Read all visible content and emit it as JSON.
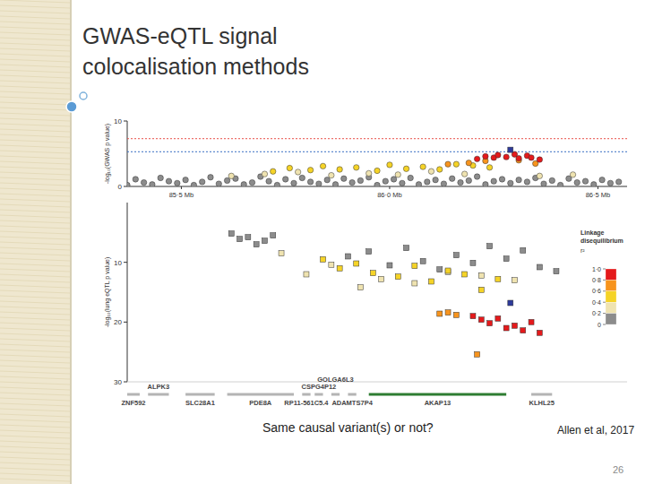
{
  "slide": {
    "title": "GWAS-eQTL signal colocalisation methods",
    "caption": "Same causal variant(s) or not?",
    "citation": "Allen et al, 2017",
    "page": 26
  },
  "chart_data": [
    {
      "type": "scatter",
      "marker": "circle",
      "ylabel": "-log₁₀(GWAS p value)",
      "xlim": [
        85.37,
        86.57
      ],
      "xticks": [
        {
          "value": 85.5,
          "label": "85·5 Mb"
        },
        {
          "value": 86.0,
          "label": "86·0 Mb"
        },
        {
          "value": 86.5,
          "label": "86·5 Mb"
        }
      ],
      "ylim": [
        0,
        10
      ],
      "yticks": [
        0,
        10
      ],
      "reference_lines": [
        {
          "value": 7.3,
          "color": "#e8504a"
        },
        {
          "value": 5.3,
          "color": "#3a6fc4"
        }
      ],
      "series": [
        {
          "color": "#8c8c8c",
          "x": [
            85.37,
            85.39,
            85.41,
            85.43,
            85.45,
            85.47,
            85.49,
            85.51,
            85.53,
            85.55,
            85.57,
            85.59,
            85.61,
            85.63,
            85.65,
            85.67,
            85.69,
            85.71,
            85.73,
            85.75,
            85.77,
            85.79,
            85.81,
            85.83,
            85.85,
            85.87,
            85.89,
            85.91,
            85.93,
            85.95,
            85.97,
            85.99,
            86.01,
            86.03,
            86.05,
            86.07,
            86.09,
            86.11,
            86.13,
            86.15,
            86.17,
            86.19,
            86.21,
            86.23,
            86.25,
            86.27,
            86.29,
            86.31,
            86.33,
            86.35,
            86.37,
            86.39,
            86.41,
            86.43,
            86.45,
            86.47,
            86.49,
            86.51,
            86.53,
            86.55
          ],
          "values": [
            0.2,
            1.1,
            0.6,
            0.3,
            1.3,
            0.8,
            0.5,
            1.0,
            0.2,
            0.7,
            1.4,
            0.4,
            0.9,
            1.2,
            0.3,
            0.6,
            1.5,
            0.8,
            0.2,
            1.1,
            0.5,
            1.3,
            0.7,
            0.4,
            1.0,
            0.3,
            1.2,
            0.6,
            0.9,
            1.4,
            0.2,
            0.8,
            1.1,
            0.5,
            1.3,
            0.3,
            0.7,
            1.0,
            0.4,
            1.2,
            0.6,
            0.9,
            1.5,
            0.3,
            0.8,
            1.1,
            0.5,
            1.0,
            0.7,
            1.3,
            0.4,
            0.9,
            0.2,
            1.2,
            0.6,
            0.8,
            0.3,
            1.0,
            0.5,
            0.7
          ]
        },
        {
          "color": "#efe3b0",
          "x": [
            85.62,
            85.7,
            85.78,
            85.86,
            85.95,
            86.02,
            86.1,
            86.18,
            86.36,
            86.44
          ],
          "values": [
            1.6,
            1.9,
            2.2,
            1.7,
            2.0,
            1.8,
            2.3,
            1.9,
            1.6,
            1.8
          ]
        },
        {
          "color": "#f5d327",
          "x": [
            85.72,
            85.76,
            85.81,
            85.84,
            85.88,
            85.92,
            85.97,
            86.0,
            86.04,
            86.08,
            86.12,
            86.16,
            86.2,
            86.24
          ],
          "values": [
            2.3,
            2.8,
            2.5,
            3.1,
            2.6,
            2.9,
            2.4,
            3.3,
            2.7,
            3.0,
            2.6,
            3.4,
            3.2,
            2.9
          ]
        },
        {
          "color": "#f7941d",
          "x": [
            86.14,
            86.19,
            86.23,
            86.31,
            86.35
          ],
          "values": [
            3.4,
            3.6,
            3.9,
            4.0,
            3.5
          ]
        },
        {
          "color": "#e41a1c",
          "x": [
            86.21,
            86.23,
            86.25,
            86.26,
            86.28,
            86.3,
            86.31,
            86.33,
            86.34,
            86.36
          ],
          "values": [
            4.2,
            4.6,
            4.4,
            4.8,
            4.5,
            4.9,
            4.3,
            4.7,
            4.4,
            4.1
          ]
        },
        {
          "color": "#2e3a9a",
          "marker": "square",
          "x": [
            86.29
          ],
          "values": [
            5.6
          ]
        }
      ]
    },
    {
      "type": "scatter",
      "marker": "square",
      "ylabel": "-log₁₀(lung eQTL p value)",
      "xlim": [
        85.37,
        86.57
      ],
      "ylim": [
        30,
        0
      ],
      "yticks": [
        10,
        20,
        30
      ],
      "tick_labels": "y",
      "series": [
        {
          "color": "#8c8c8c",
          "x": [
            85.62,
            85.64,
            85.66,
            85.68,
            85.7,
            85.72,
            85.9,
            85.95,
            86.0,
            86.04,
            86.08,
            86.12,
            86.16,
            86.2,
            86.24,
            86.28,
            86.32,
            86.36,
            86.4
          ],
          "values": [
            5.2,
            6.1,
            5.8,
            7.0,
            6.4,
            5.5,
            9.0,
            8.2,
            10.5,
            7.6,
            9.8,
            11.2,
            8.8,
            10.1,
            7.3,
            9.4,
            8.0,
            10.8,
            11.5
          ]
        },
        {
          "color": "#efe3b0",
          "x": [
            85.74,
            85.8,
            85.86,
            85.93,
            85.98,
            86.06,
            86.14,
            86.22,
            86.3
          ],
          "values": [
            8.5,
            12.0,
            10.4,
            14.2,
            12.8,
            13.5,
            11.6,
            12.2,
            13.0
          ]
        },
        {
          "color": "#f5d327",
          "x": [
            85.84,
            85.88,
            85.92,
            85.96,
            86.02,
            86.06,
            86.1,
            86.14,
            86.18,
            86.22,
            86.26
          ],
          "values": [
            9.5,
            11.0,
            10.2,
            11.8,
            12.4,
            10.6,
            13.2,
            11.4,
            12.0,
            14.6,
            12.8
          ]
        },
        {
          "color": "#f7941d",
          "x": [
            86.12,
            86.14,
            86.16,
            86.21
          ],
          "values": [
            18.6,
            18.4,
            18.8,
            25.4
          ]
        },
        {
          "color": "#e41a1c",
          "x": [
            86.2,
            86.22,
            86.24,
            86.26,
            86.28,
            86.3,
            86.32,
            86.34,
            86.36
          ],
          "values": [
            19.0,
            19.6,
            20.2,
            19.4,
            21.0,
            20.6,
            21.4,
            20.0,
            21.8
          ]
        },
        {
          "color": "#2e3a9a",
          "x": [
            86.29
          ],
          "values": [
            16.8
          ]
        }
      ]
    }
  ],
  "ld_legend": {
    "title": "Linkage disequilibrium",
    "subtitle": "r²",
    "ticks": [
      {
        "value": 1,
        "label": "1·0"
      },
      {
        "value": 0.8,
        "label": "0·8"
      },
      {
        "value": 0.6,
        "label": "0·6"
      },
      {
        "value": 0.4,
        "label": "0·4"
      },
      {
        "value": 0.2,
        "label": "0·2"
      },
      0
    ],
    "colors": [
      "#e41a1c",
      "#f7941d",
      "#f5d327",
      "#efe3b0",
      "#8c8c8c"
    ]
  },
  "genes": [
    {
      "name": "ZNF592",
      "start": 85.37,
      "end": 85.4,
      "color": "#b4b4b4"
    },
    {
      "name": "ALPK3",
      "start": 85.42,
      "end": 85.47,
      "color": "#b4b4b4"
    },
    {
      "name": "SLC28A1",
      "start": 85.51,
      "end": 85.58,
      "color": "#b4b4b4"
    },
    {
      "name": "PDE8A",
      "start": 85.61,
      "end": 85.77,
      "color": "#b4b4b4"
    },
    {
      "name": "RP11-561C5.4",
      "start": 85.79,
      "end": 85.81,
      "color": "#b4b4b4"
    },
    {
      "name": "CSPG4P12",
      "start": 85.82,
      "end": 85.84,
      "color": "#b4b4b4"
    },
    {
      "name": "GOLGA6L3",
      "start": 85.86,
      "end": 85.88,
      "color": "#b4b4b4"
    },
    {
      "name": "ADAMTS7P4",
      "start": 85.9,
      "end": 85.92,
      "color": "#b4b4b4"
    },
    {
      "name": "AKAP13",
      "start": 85.95,
      "end": 86.28,
      "color": "#2e7d32"
    },
    {
      "name": "KLHL25",
      "start": 86.34,
      "end": 86.39,
      "color": "#b4b4b4"
    }
  ]
}
